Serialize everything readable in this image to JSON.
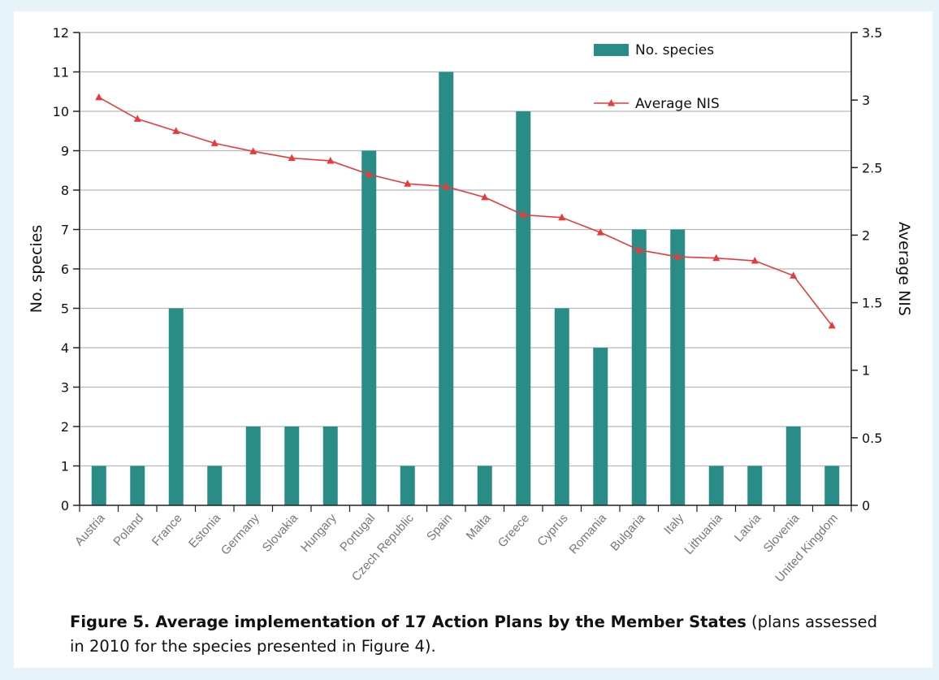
{
  "chart_data": {
    "type": "bar",
    "categories": [
      "Austria",
      "Poland",
      "France",
      "Estonia",
      "Germany",
      "Slovakia",
      "Hungary",
      "Portugal",
      "Czech Republic",
      "Spain",
      "Malta",
      "Greece",
      "Cyprus",
      "Romania",
      "Bulgaria",
      "Italy",
      "Lithuania",
      "Latvia",
      "Slovenia",
      "United Kingdom"
    ],
    "series": [
      {
        "name": "No. species",
        "type": "bar",
        "axis": "left",
        "values": [
          1,
          1,
          5,
          1,
          2,
          2,
          2,
          9,
          1,
          11,
          1,
          10,
          5,
          4,
          7,
          7,
          1,
          1,
          2,
          1
        ]
      },
      {
        "name": "Average NIS",
        "type": "line",
        "axis": "right",
        "values": [
          3.02,
          2.86,
          2.77,
          2.68,
          2.62,
          2.57,
          2.55,
          2.45,
          2.38,
          2.36,
          2.28,
          2.15,
          2.13,
          2.02,
          1.89,
          1.84,
          1.83,
          1.81,
          1.7,
          1.33
        ]
      }
    ],
    "ylabel": "No. species",
    "y2label": "Average NIS",
    "ylim": [
      0,
      12
    ],
    "y2lim": [
      0,
      3.5
    ],
    "yticks": [
      "0",
      "1",
      "2",
      "3",
      "4",
      "5",
      "6",
      "7",
      "8",
      "9",
      "10",
      "11",
      "12"
    ],
    "y2ticks": [
      "0",
      "0.5",
      "1",
      "1.5",
      "2",
      "2.5",
      "3",
      "3.5"
    ],
    "grid": true,
    "legend_position": "top-right",
    "colors": {
      "bar": "#2a8c86",
      "line": "#e83a3a",
      "grid": "#b8b8b8",
      "axis": "#222222"
    }
  },
  "caption": {
    "bold": "Figure 5. Average implementation of 17 Action Plans by the Member States",
    "normal": " (plans assessed in 2010 for the species presented in Figure 4)."
  }
}
